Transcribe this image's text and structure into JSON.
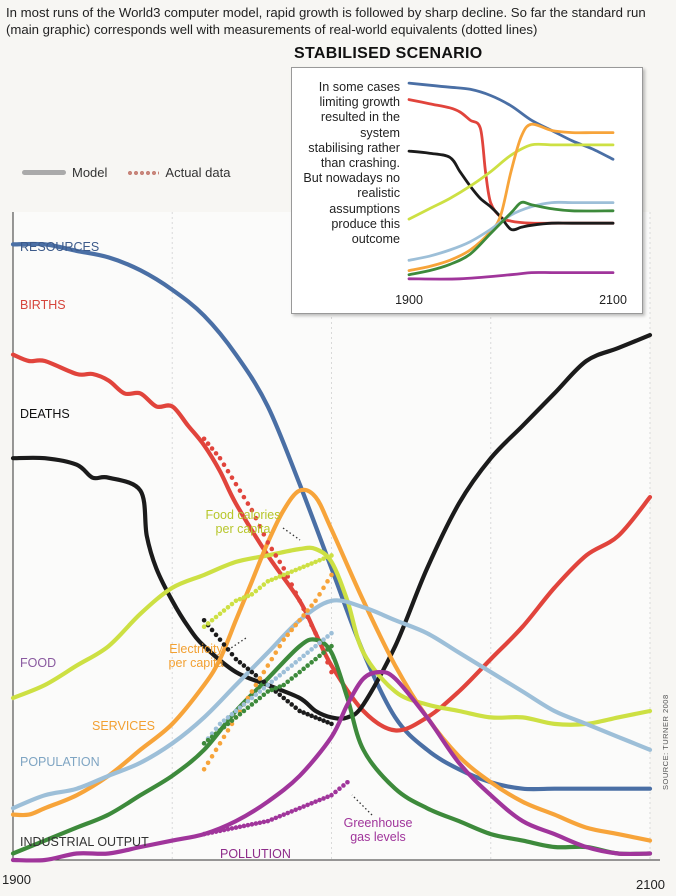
{
  "intro": "In most runs of the World3 computer model, rapid growth is followed by sharp decline. So far the standard run (main graphic) corresponds well with measurements of real-world equivalents (dotted lines)",
  "legend": {
    "model": "Model",
    "actual": "Actual data"
  },
  "inset_title": "STABILISED SCENARIO",
  "inset_text": "In some cases limiting growth resulted in the system stabilising rather than crashing. But nowadays no realistic assumptions produce this outcome",
  "source": "SOURCE: TURNER 2008",
  "colors": {
    "resources": "#4a6fa5",
    "births": "#e1443c",
    "deaths": "#1b1b1b",
    "food": "#cde043",
    "services": "#f7a43a",
    "population": "#9dbfd8",
    "industrial": "#3d8a3b",
    "pollution": "#a0359b",
    "model_legend": "#aaaaaa",
    "actual_legend": "#c8867b"
  },
  "chart_data": [
    {
      "type": "line",
      "xlabel": "",
      "ylabel": "",
      "xlim": [
        1900,
        2100
      ],
      "ylim": [
        0,
        1
      ],
      "x_tick_labels": [
        "1900",
        "2100"
      ],
      "x_gridlines": [
        1900,
        1950,
        2000,
        2050,
        2100
      ],
      "legend": [
        "Model",
        "Actual data"
      ],
      "series": [
        {
          "name": "RESOURCES",
          "label": "RESOURCES",
          "color": "#4a6fa5",
          "x": [
            1900,
            1910,
            1920,
            1930,
            1940,
            1950,
            1960,
            1970,
            1980,
            1990,
            2000,
            2010,
            2020,
            2030,
            2040,
            2050,
            2060,
            2070,
            2080,
            2090,
            2100
          ],
          "y": [
            0.95,
            0.95,
            0.94,
            0.93,
            0.91,
            0.88,
            0.84,
            0.78,
            0.7,
            0.58,
            0.45,
            0.32,
            0.22,
            0.17,
            0.14,
            0.12,
            0.11,
            0.11,
            0.11,
            0.11,
            0.11
          ]
        },
        {
          "name": "BIRTHS",
          "label": "BIRTHS",
          "color": "#e1443c",
          "x": [
            1900,
            1905,
            1910,
            1920,
            1925,
            1930,
            1935,
            1940,
            1945,
            1950,
            1955,
            1960,
            1965,
            1970,
            1980,
            1990,
            1995,
            2000,
            2010,
            2020,
            2030,
            2040,
            2050,
            2060,
            2070,
            2080,
            2090,
            2100
          ],
          "y": [
            0.78,
            0.77,
            0.77,
            0.75,
            0.75,
            0.74,
            0.72,
            0.72,
            0.7,
            0.7,
            0.67,
            0.64,
            0.6,
            0.55,
            0.47,
            0.4,
            0.35,
            0.3,
            0.23,
            0.2,
            0.22,
            0.26,
            0.31,
            0.36,
            0.42,
            0.47,
            0.5,
            0.56
          ]
        },
        {
          "name": "DEATHS",
          "label": "DEATHS",
          "color": "#1b1b1b",
          "x": [
            1900,
            1910,
            1920,
            1925,
            1930,
            1940,
            1942,
            1945,
            1950,
            1955,
            1960,
            1970,
            1980,
            1990,
            1995,
            2000,
            2005,
            2010,
            2020,
            2030,
            2040,
            2050,
            2060,
            2070,
            2080,
            2090,
            2100
          ],
          "y": [
            0.62,
            0.62,
            0.61,
            0.59,
            0.59,
            0.57,
            0.5,
            0.45,
            0.4,
            0.36,
            0.33,
            0.29,
            0.27,
            0.25,
            0.23,
            0.22,
            0.22,
            0.24,
            0.33,
            0.45,
            0.55,
            0.62,
            0.67,
            0.72,
            0.77,
            0.79,
            0.81
          ]
        },
        {
          "name": "FOOD",
          "label": "FOOD",
          "color": "#cde043",
          "x": [
            1900,
            1910,
            1920,
            1930,
            1940,
            1950,
            1960,
            1970,
            1980,
            1990,
            1995,
            2000,
            2005,
            2010,
            2020,
            2030,
            2040,
            2050,
            2060,
            2070,
            2080,
            2090,
            2100
          ],
          "y": [
            0.25,
            0.27,
            0.3,
            0.33,
            0.38,
            0.42,
            0.44,
            0.46,
            0.47,
            0.48,
            0.48,
            0.46,
            0.4,
            0.32,
            0.26,
            0.24,
            0.23,
            0.22,
            0.22,
            0.21,
            0.21,
            0.22,
            0.23
          ]
        },
        {
          "name": "SERVICES",
          "label": "SERVICES",
          "color": "#f7a43a",
          "x": [
            1900,
            1905,
            1910,
            1920,
            1930,
            1940,
            1950,
            1960,
            1965,
            1970,
            1975,
            1980,
            1985,
            1990,
            1995,
            2000,
            2010,
            2020,
            2030,
            2040,
            2050,
            2060,
            2070,
            2080,
            2090,
            2100
          ],
          "y": [
            0.07,
            0.07,
            0.08,
            0.1,
            0.13,
            0.17,
            0.21,
            0.27,
            0.31,
            0.37,
            0.43,
            0.49,
            0.54,
            0.57,
            0.56,
            0.51,
            0.4,
            0.3,
            0.22,
            0.16,
            0.12,
            0.09,
            0.07,
            0.05,
            0.04,
            0.03
          ]
        },
        {
          "name": "POPULATION",
          "label": "POPULATION",
          "color": "#9dbfd8",
          "x": [
            1900,
            1910,
            1920,
            1930,
            1940,
            1950,
            1960,
            1970,
            1980,
            1990,
            2000,
            2010,
            2020,
            2030,
            2040,
            2050,
            2060,
            2070,
            2080,
            2090,
            2100
          ],
          "y": [
            0.08,
            0.1,
            0.11,
            0.13,
            0.15,
            0.18,
            0.22,
            0.27,
            0.32,
            0.37,
            0.4,
            0.39,
            0.37,
            0.35,
            0.32,
            0.29,
            0.26,
            0.23,
            0.21,
            0.19,
            0.17
          ]
        },
        {
          "name": "INDUSTRIAL OUTPUT",
          "label": "INDUSTRIAL OUTPUT",
          "color": "#3d8a3b",
          "x": [
            1900,
            1910,
            1920,
            1930,
            1940,
            1950,
            1960,
            1970,
            1980,
            1990,
            1995,
            2000,
            2005,
            2010,
            2020,
            2030,
            2040,
            2050,
            2060,
            2070,
            2080,
            2090,
            2100
          ],
          "y": [
            0.01,
            0.03,
            0.05,
            0.07,
            0.1,
            0.13,
            0.17,
            0.23,
            0.28,
            0.33,
            0.34,
            0.32,
            0.25,
            0.17,
            0.11,
            0.08,
            0.06,
            0.04,
            0.03,
            0.02,
            0.02,
            0.01,
            0.01
          ]
        },
        {
          "name": "POLLUTION",
          "label": "POLLUTION",
          "color": "#a0359b",
          "x": [
            1900,
            1910,
            1920,
            1930,
            1940,
            1950,
            1960,
            1970,
            1980,
            1990,
            2000,
            2005,
            2010,
            2015,
            2020,
            2030,
            2040,
            2050,
            2060,
            2070,
            2080,
            2090,
            2100
          ],
          "y": [
            0.0,
            0.0,
            0.01,
            0.01,
            0.02,
            0.03,
            0.04,
            0.06,
            0.09,
            0.13,
            0.19,
            0.24,
            0.28,
            0.29,
            0.28,
            0.22,
            0.15,
            0.1,
            0.06,
            0.04,
            0.02,
            0.01,
            0.01
          ]
        }
      ],
      "actual_data": [
        {
          "name": "Actual BIRTHS",
          "color": "#e1443c",
          "x": [
            1960,
            1965,
            1970,
            1975,
            1980,
            1985,
            1990,
            1995,
            2000
          ],
          "y": [
            0.65,
            0.62,
            0.58,
            0.54,
            0.49,
            0.45,
            0.4,
            0.35,
            0.29
          ]
        },
        {
          "name": "Actual DEATHS",
          "color": "#1b1b1b",
          "x": [
            1960,
            1965,
            1970,
            1975,
            1980,
            1985,
            1990,
            1995,
            2000
          ],
          "y": [
            0.37,
            0.34,
            0.31,
            0.29,
            0.27,
            0.25,
            0.23,
            0.22,
            0.21
          ]
        },
        {
          "name": "Food calories per capita",
          "color": "#cde043",
          "x": [
            1960,
            1965,
            1970,
            1975,
            1980,
            1985,
            1990,
            1995,
            2000
          ],
          "y": [
            0.36,
            0.38,
            0.4,
            0.41,
            0.43,
            0.44,
            0.45,
            0.46,
            0.47
          ]
        },
        {
          "name": "Electricity per capita",
          "color": "#f7a43a",
          "x": [
            1960,
            1965,
            1970,
            1975,
            1980,
            1985,
            1990,
            1995,
            2000
          ],
          "y": [
            0.14,
            0.18,
            0.22,
            0.26,
            0.3,
            0.34,
            0.37,
            0.4,
            0.44
          ]
        },
        {
          "name": "Actual POPULATION",
          "color": "#9dbfd8",
          "x": [
            1960,
            1965,
            1970,
            1975,
            1980,
            1985,
            1990,
            1995,
            2000
          ],
          "y": [
            0.18,
            0.21,
            0.23,
            0.25,
            0.27,
            0.29,
            0.31,
            0.33,
            0.35
          ]
        },
        {
          "name": "Actual INDUSTRIAL OUTPUT",
          "color": "#3d8a3b",
          "x": [
            1960,
            1965,
            1970,
            1975,
            1980,
            1985,
            1990,
            1995,
            2000
          ],
          "y": [
            0.18,
            0.2,
            0.22,
            0.24,
            0.26,
            0.27,
            0.29,
            0.31,
            0.33
          ]
        },
        {
          "name": "Greenhouse gas levels",
          "color": "#a0359b",
          "x": [
            1960,
            1965,
            1970,
            1975,
            1980,
            1985,
            1990,
            1995,
            2000,
            2005
          ],
          "y": [
            0.04,
            0.045,
            0.05,
            0.055,
            0.06,
            0.07,
            0.08,
            0.09,
            0.1,
            0.12
          ]
        }
      ],
      "annotations": [
        {
          "text": "Food calories per capita",
          "series": "Food calories per capita"
        },
        {
          "text": "Electricity per capita",
          "series": "Electricity per capita"
        },
        {
          "text": "Greenhouse gas levels",
          "series": "Greenhouse gas levels"
        }
      ]
    },
    {
      "type": "line",
      "title": "STABILISED SCENARIO",
      "xlim": [
        1900,
        2100
      ],
      "ylim": [
        0,
        1
      ],
      "x_tick_labels": [
        "1900",
        "2100"
      ],
      "series": [
        {
          "name": "resources",
          "color": "#4a6fa5",
          "x": [
            1900,
            1920,
            1940,
            1960,
            1980,
            2000,
            2020,
            2040,
            2060,
            2080,
            2100
          ],
          "y": [
            0.98,
            0.97,
            0.96,
            0.95,
            0.92,
            0.87,
            0.8,
            0.75,
            0.7,
            0.66,
            0.61
          ]
        },
        {
          "name": "births",
          "color": "#e1443c",
          "x": [
            1900,
            1920,
            1940,
            1950,
            1960,
            1970,
            1975,
            1980,
            1990,
            2000,
            2020,
            2040,
            2060,
            2100
          ],
          "y": [
            0.9,
            0.88,
            0.86,
            0.84,
            0.8,
            0.76,
            0.55,
            0.4,
            0.33,
            0.31,
            0.3,
            0.3,
            0.3,
            0.3
          ]
        },
        {
          "name": "deaths",
          "color": "#1b1b1b",
          "x": [
            1900,
            1920,
            1940,
            1950,
            1960,
            1970,
            1980,
            1990,
            2000,
            2010,
            2020,
            2040,
            2060,
            2100
          ],
          "y": [
            0.65,
            0.64,
            0.62,
            0.55,
            0.48,
            0.42,
            0.38,
            0.33,
            0.27,
            0.28,
            0.29,
            0.3,
            0.3,
            0.3
          ]
        },
        {
          "name": "food",
          "color": "#cde043",
          "x": [
            1900,
            1920,
            1940,
            1960,
            1980,
            2000,
            2020,
            2040,
            2060,
            2080,
            2100
          ],
          "y": [
            0.32,
            0.37,
            0.42,
            0.48,
            0.55,
            0.63,
            0.68,
            0.68,
            0.68,
            0.68,
            0.68
          ]
        },
        {
          "name": "services",
          "color": "#f7a43a",
          "x": [
            1900,
            1920,
            1940,
            1960,
            1980,
            1990,
            2000,
            2010,
            2020,
            2040,
            2060,
            2080,
            2100
          ],
          "y": [
            0.07,
            0.09,
            0.12,
            0.17,
            0.26,
            0.34,
            0.55,
            0.72,
            0.78,
            0.75,
            0.74,
            0.74,
            0.74
          ]
        },
        {
          "name": "population",
          "color": "#9dbfd8",
          "x": [
            1900,
            1920,
            1940,
            1960,
            1980,
            2000,
            2020,
            2040,
            2060,
            2080,
            2100
          ],
          "y": [
            0.12,
            0.14,
            0.17,
            0.21,
            0.27,
            0.34,
            0.38,
            0.4,
            0.4,
            0.4,
            0.4
          ]
        },
        {
          "name": "industrial",
          "color": "#3d8a3b",
          "x": [
            1900,
            1920,
            1940,
            1960,
            1980,
            2000,
            2010,
            2020,
            2040,
            2060,
            2100
          ],
          "y": [
            0.05,
            0.07,
            0.1,
            0.15,
            0.25,
            0.35,
            0.4,
            0.39,
            0.37,
            0.36,
            0.36
          ]
        },
        {
          "name": "pollution",
          "color": "#a0359b",
          "x": [
            1900,
            1950,
            2000,
            2020,
            2040,
            2060,
            2100
          ],
          "y": [
            0.03,
            0.03,
            0.05,
            0.06,
            0.06,
            0.06,
            0.06
          ]
        }
      ]
    }
  ]
}
